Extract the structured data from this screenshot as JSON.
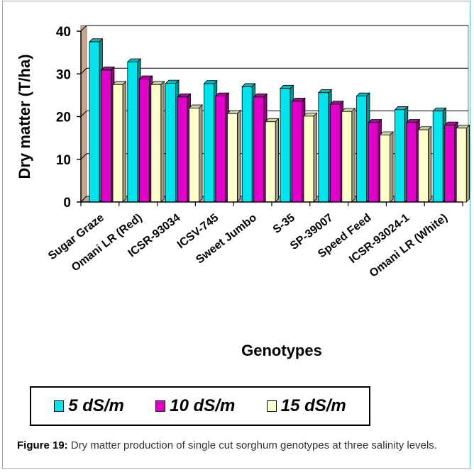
{
  "chart_data": {
    "type": "bar",
    "ylabel": "Dry matter (T/ha)",
    "xlabel": "Genotypes",
    "ylim": [
      0,
      40
    ],
    "yticks": [
      0,
      10,
      20,
      30,
      40
    ],
    "grid": true,
    "legend_position": "bottom",
    "categories": [
      "Sugar Graze",
      "Omani LR (Red)",
      "ICSR-93034",
      "ICSV-745",
      "Sweet Jumbo",
      "S-35",
      "SP-39007",
      "Speed Feed",
      "ICSR-93024-1",
      "Omani LR (White)"
    ],
    "series": [
      {
        "name": "5 dS/m",
        "color": "#00e5ee",
        "values": [
          37.5,
          32.8,
          27.8,
          27.7,
          27.0,
          26.6,
          25.6,
          24.8,
          21.6,
          21.3
        ]
      },
      {
        "name": "10 dS/m",
        "color": "#e000c8",
        "values": [
          30.9,
          28.8,
          24.6,
          24.8,
          24.6,
          23.6,
          22.9,
          18.6,
          18.6,
          18.0
        ]
      },
      {
        "name": "15 dS/m",
        "color": "#ffffcc",
        "values": [
          27.5,
          27.5,
          22.0,
          20.7,
          18.8,
          20.1,
          21.2,
          15.7,
          16.9,
          17.3
        ]
      }
    ]
  },
  "caption": {
    "label": "Figure 19:",
    "text": " Dry matter production of single cut sorghum genotypes at three salinity levels."
  }
}
